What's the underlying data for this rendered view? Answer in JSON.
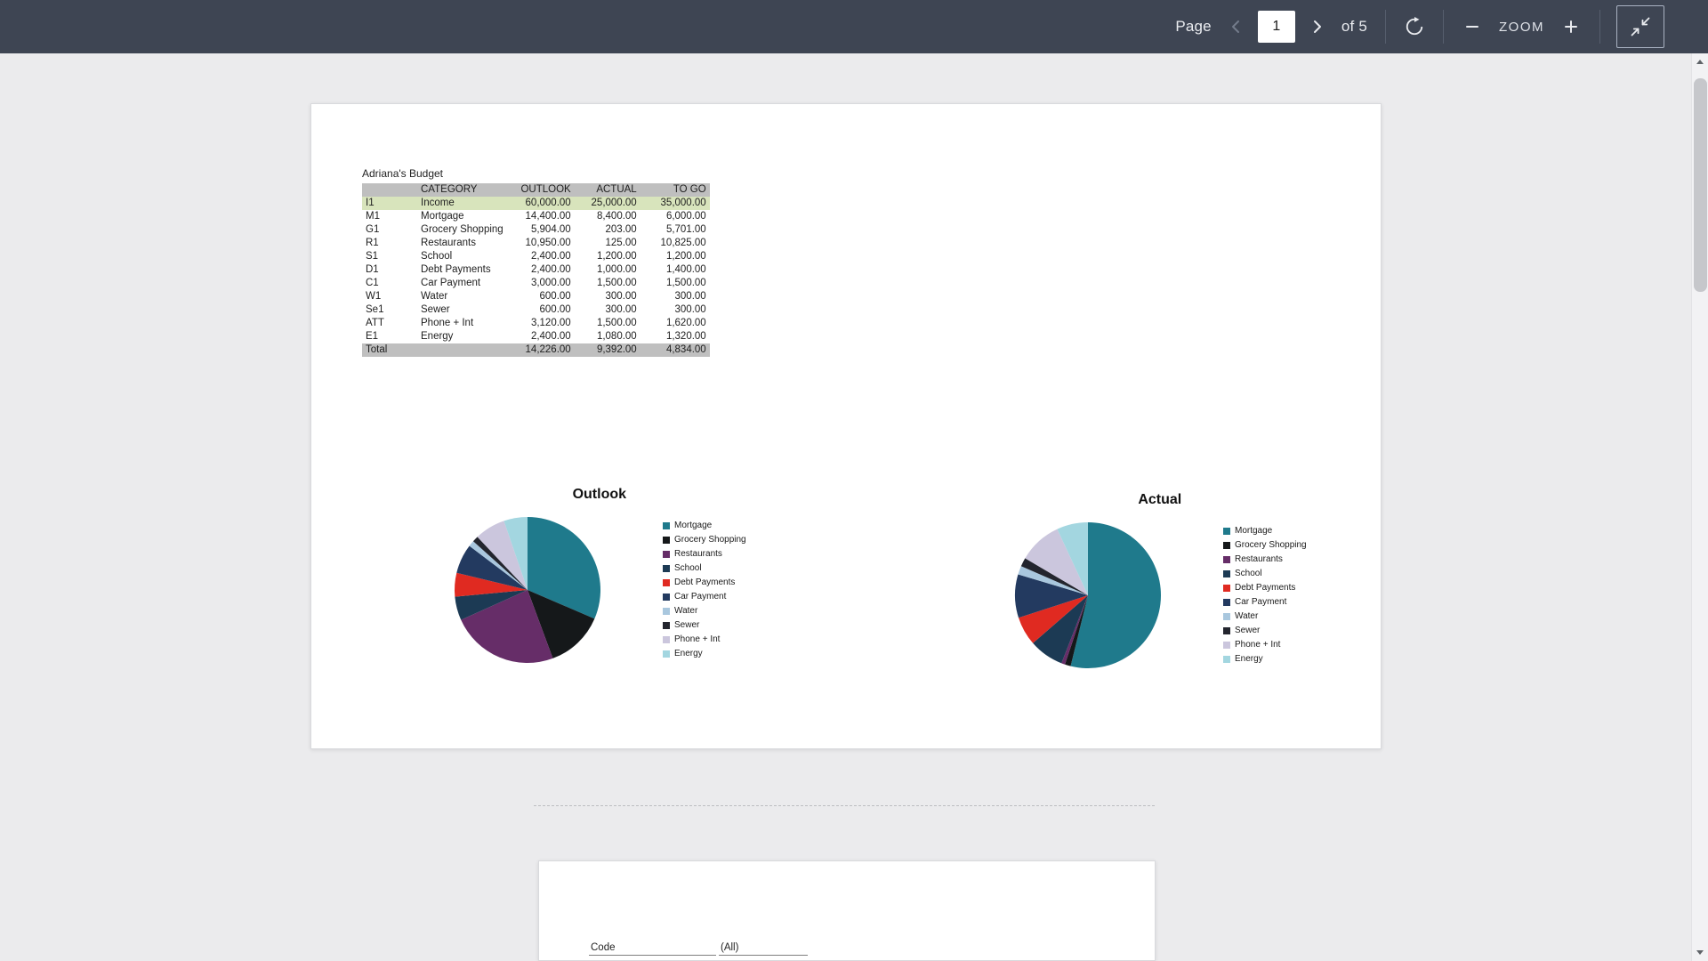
{
  "toolbar": {
    "page_label": "Page",
    "page_value": "1",
    "page_total_label": "of 5",
    "zoom_label": "ZOOM"
  },
  "icons": {
    "previous_page": "chevron-left",
    "next_page": "chevron-right",
    "rotate": "rotate-clockwise",
    "zoom_out": "minus",
    "zoom_in": "plus",
    "fit": "collapse-arrows",
    "scroll_up": "triangle-up",
    "scroll_down": "triangle-down"
  },
  "colors": {
    "toolbar_bg": "#3e4553",
    "canvas_bg": "#ebebed",
    "header_row_bg": "#bfbfbf",
    "income_row_bg": "#d8e4bc",
    "total_row_bg": "#bfbfbf"
  },
  "document": {
    "page1": {
      "title": "Adriana's Budget",
      "table": {
        "headers": [
          "",
          "CATEGORY",
          "OUTLOOK",
          "ACTUAL",
          "TO GO"
        ],
        "rows": [
          [
            "I1",
            "Income",
            "60,000.00",
            "25,000.00",
            "35,000.00"
          ],
          [
            "M1",
            "Mortgage",
            "14,400.00",
            "8,400.00",
            "6,000.00"
          ],
          [
            "G1",
            "Grocery Shopping",
            "5,904.00",
            "203.00",
            "5,701.00"
          ],
          [
            "R1",
            "Restaurants",
            "10,950.00",
            "125.00",
            "10,825.00"
          ],
          [
            "S1",
            "School",
            "2,400.00",
            "1,200.00",
            "1,200.00"
          ],
          [
            "D1",
            "Debt Payments",
            "2,400.00",
            "1,000.00",
            "1,400.00"
          ],
          [
            "C1",
            "Car Payment",
            "3,000.00",
            "1,500.00",
            "1,500.00"
          ],
          [
            "W1",
            "Water",
            "600.00",
            "300.00",
            "300.00"
          ],
          [
            "Se1",
            "Sewer",
            "600.00",
            "300.00",
            "300.00"
          ],
          [
            "ATT",
            "Phone + Int",
            "3,120.00",
            "1,500.00",
            "1,620.00"
          ],
          [
            "E1",
            "Energy",
            "2,400.00",
            "1,080.00",
            "1,320.00"
          ]
        ],
        "total_row": [
          "Total",
          "",
          "14,226.00",
          "9,392.00",
          "4,834.00"
        ]
      }
    },
    "page2": {
      "filter_label": "Code",
      "filter_value": "(All)"
    }
  },
  "chart_data": [
    {
      "type": "pie",
      "title": "Outlook",
      "categories": [
        "Mortgage",
        "Grocery Shopping",
        "Restaurants",
        "School",
        "Debt Payments",
        "Car Payment",
        "Water",
        "Sewer",
        "Phone + Int",
        "Energy"
      ],
      "values": [
        14400,
        5904,
        10950,
        2400,
        2400,
        3000,
        600,
        600,
        3120,
        2400
      ],
      "colors": [
        "#1F7A8C",
        "#15181A",
        "#662D68",
        "#1C3A54",
        "#E02A21",
        "#233A60",
        "#A9C7DE",
        "#23252E",
        "#CBC6DD",
        "#A3D6E0"
      ],
      "legend_position": "right"
    },
    {
      "type": "pie",
      "title": "Actual",
      "categories": [
        "Mortgage",
        "Grocery Shopping",
        "Restaurants",
        "School",
        "Debt Payments",
        "Car Payment",
        "Water",
        "Sewer",
        "Phone + Int",
        "Energy"
      ],
      "values": [
        8400,
        203,
        125,
        1200,
        1000,
        1500,
        300,
        300,
        1500,
        1080
      ],
      "colors": [
        "#1F7A8C",
        "#15181A",
        "#662D68",
        "#1C3A54",
        "#E02A21",
        "#233A60",
        "#A9C7DE",
        "#23252E",
        "#CBC6DD",
        "#A3D6E0"
      ],
      "legend_position": "right"
    }
  ]
}
